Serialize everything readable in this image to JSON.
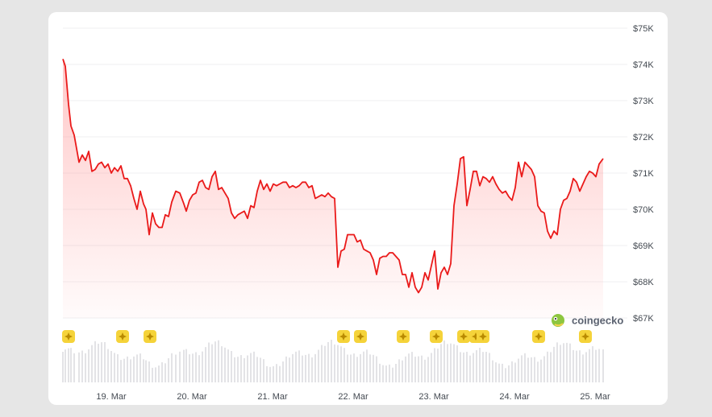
{
  "chart_data": {
    "type": "line",
    "title": "",
    "xlabel": "",
    "ylabel": "",
    "series_color": "#ea1a1a",
    "fill_color": "#ff9b9b",
    "volume_color": "#e3e3e6",
    "event_marker_color": "#f5d33a",
    "ylim": [
      67000,
      75000
    ],
    "x_range": [
      0,
      7
    ],
    "yticks": [
      {
        "value": 75000,
        "label": "$75K"
      },
      {
        "value": 74000,
        "label": "$74K"
      },
      {
        "value": 73000,
        "label": "$73K"
      },
      {
        "value": 72000,
        "label": "$72K"
      },
      {
        "value": 71000,
        "label": "$71K"
      },
      {
        "value": 70000,
        "label": "$70K"
      },
      {
        "value": 69000,
        "label": "$69K"
      },
      {
        "value": 68000,
        "label": "$68K"
      },
      {
        "value": 67000,
        "label": "$67K"
      }
    ],
    "xticks": [
      {
        "value": 0.6,
        "label": "19. Mar"
      },
      {
        "value": 1.6,
        "label": "20. Mar"
      },
      {
        "value": 2.6,
        "label": "21. Mar"
      },
      {
        "value": 3.6,
        "label": "22. Mar"
      },
      {
        "value": 4.6,
        "label": "23. Mar"
      },
      {
        "value": 5.6,
        "label": "24. Mar"
      },
      {
        "value": 6.6,
        "label": "25. Mar"
      }
    ],
    "points": [
      [
        0.0,
        74150
      ],
      [
        0.03,
        73950
      ],
      [
        0.07,
        72900
      ],
      [
        0.1,
        72300
      ],
      [
        0.14,
        72050
      ],
      [
        0.2,
        71300
      ],
      [
        0.24,
        71500
      ],
      [
        0.28,
        71350
      ],
      [
        0.32,
        71600
      ],
      [
        0.36,
        71050
      ],
      [
        0.4,
        71100
      ],
      [
        0.44,
        71250
      ],
      [
        0.48,
        71300
      ],
      [
        0.52,
        71150
      ],
      [
        0.56,
        71250
      ],
      [
        0.6,
        71000
      ],
      [
        0.64,
        71150
      ],
      [
        0.68,
        71050
      ],
      [
        0.72,
        71200
      ],
      [
        0.76,
        70850
      ],
      [
        0.8,
        70850
      ],
      [
        0.84,
        70650
      ],
      [
        0.88,
        70300
      ],
      [
        0.92,
        70000
      ],
      [
        0.96,
        70500
      ],
      [
        1.0,
        70150
      ],
      [
        1.03,
        70000
      ],
      [
        1.07,
        69300
      ],
      [
        1.11,
        69900
      ],
      [
        1.15,
        69600
      ],
      [
        1.19,
        69500
      ],
      [
        1.23,
        69500
      ],
      [
        1.27,
        69850
      ],
      [
        1.31,
        69800
      ],
      [
        1.35,
        70200
      ],
      [
        1.4,
        70500
      ],
      [
        1.45,
        70450
      ],
      [
        1.5,
        70150
      ],
      [
        1.53,
        69950
      ],
      [
        1.57,
        70250
      ],
      [
        1.61,
        70400
      ],
      [
        1.65,
        70450
      ],
      [
        1.69,
        70750
      ],
      [
        1.73,
        70800
      ],
      [
        1.77,
        70600
      ],
      [
        1.81,
        70550
      ],
      [
        1.85,
        70900
      ],
      [
        1.89,
        71050
      ],
      [
        1.93,
        70550
      ],
      [
        1.97,
        70600
      ],
      [
        2.01,
        70450
      ],
      [
        2.05,
        70300
      ],
      [
        2.09,
        69900
      ],
      [
        2.13,
        69750
      ],
      [
        2.17,
        69850
      ],
      [
        2.21,
        69900
      ],
      [
        2.25,
        69950
      ],
      [
        2.29,
        69750
      ],
      [
        2.33,
        70100
      ],
      [
        2.37,
        70050
      ],
      [
        2.41,
        70500
      ],
      [
        2.45,
        70800
      ],
      [
        2.49,
        70550
      ],
      [
        2.53,
        70700
      ],
      [
        2.57,
        70500
      ],
      [
        2.61,
        70700
      ],
      [
        2.65,
        70650
      ],
      [
        2.69,
        70700
      ],
      [
        2.73,
        70750
      ],
      [
        2.77,
        70750
      ],
      [
        2.81,
        70600
      ],
      [
        2.85,
        70650
      ],
      [
        2.89,
        70600
      ],
      [
        2.93,
        70650
      ],
      [
        2.97,
        70750
      ],
      [
        3.01,
        70750
      ],
      [
        3.05,
        70600
      ],
      [
        3.09,
        70650
      ],
      [
        3.13,
        70300
      ],
      [
        3.17,
        70350
      ],
      [
        3.21,
        70400
      ],
      [
        3.25,
        70350
      ],
      [
        3.29,
        70450
      ],
      [
        3.33,
        70350
      ],
      [
        3.37,
        70300
      ],
      [
        3.41,
        68400
      ],
      [
        3.45,
        68850
      ],
      [
        3.49,
        68900
      ],
      [
        3.53,
        69300
      ],
      [
        3.57,
        69300
      ],
      [
        3.61,
        69300
      ],
      [
        3.65,
        69100
      ],
      [
        3.69,
        69150
      ],
      [
        3.73,
        68900
      ],
      [
        3.77,
        68850
      ],
      [
        3.81,
        68800
      ],
      [
        3.85,
        68600
      ],
      [
        3.89,
        68200
      ],
      [
        3.93,
        68650
      ],
      [
        3.97,
        68700
      ],
      [
        4.01,
        68700
      ],
      [
        4.05,
        68800
      ],
      [
        4.09,
        68800
      ],
      [
        4.13,
        68700
      ],
      [
        4.17,
        68600
      ],
      [
        4.21,
        68200
      ],
      [
        4.25,
        68200
      ],
      [
        4.29,
        67850
      ],
      [
        4.33,
        68250
      ],
      [
        4.37,
        67850
      ],
      [
        4.41,
        67700
      ],
      [
        4.45,
        67850
      ],
      [
        4.49,
        68250
      ],
      [
        4.53,
        68050
      ],
      [
        4.57,
        68450
      ],
      [
        4.61,
        68850
      ],
      [
        4.65,
        67800
      ],
      [
        4.69,
        68250
      ],
      [
        4.73,
        68400
      ],
      [
        4.77,
        68200
      ],
      [
        4.81,
        68500
      ],
      [
        4.85,
        70100
      ],
      [
        4.89,
        70700
      ],
      [
        4.93,
        71400
      ],
      [
        4.97,
        71450
      ],
      [
        5.01,
        70100
      ],
      [
        5.05,
        70550
      ],
      [
        5.09,
        71050
      ],
      [
        5.13,
        71050
      ],
      [
        5.17,
        70650
      ],
      [
        5.21,
        70900
      ],
      [
        5.25,
        70850
      ],
      [
        5.29,
        70750
      ],
      [
        5.33,
        70900
      ],
      [
        5.37,
        70700
      ],
      [
        5.41,
        70550
      ],
      [
        5.45,
        70450
      ],
      [
        5.49,
        70500
      ],
      [
        5.53,
        70350
      ],
      [
        5.57,
        70250
      ],
      [
        5.61,
        70600
      ],
      [
        5.65,
        71300
      ],
      [
        5.69,
        70900
      ],
      [
        5.73,
        71300
      ],
      [
        5.77,
        71200
      ],
      [
        5.81,
        71100
      ],
      [
        5.85,
        70900
      ],
      [
        5.89,
        70100
      ],
      [
        5.93,
        69950
      ],
      [
        5.97,
        69900
      ],
      [
        6.01,
        69400
      ],
      [
        6.05,
        69200
      ],
      [
        6.09,
        69400
      ],
      [
        6.13,
        69300
      ],
      [
        6.17,
        70000
      ],
      [
        6.21,
        70250
      ],
      [
        6.25,
        70300
      ],
      [
        6.29,
        70500
      ],
      [
        6.33,
        70850
      ],
      [
        6.37,
        70750
      ],
      [
        6.41,
        70500
      ],
      [
        6.45,
        70700
      ],
      [
        6.49,
        70900
      ],
      [
        6.53,
        71050
      ],
      [
        6.57,
        71000
      ],
      [
        6.61,
        70900
      ],
      [
        6.65,
        71250
      ],
      [
        6.7,
        71400
      ]
    ],
    "event_markers_x": [
      0.07,
      0.74,
      1.08,
      3.48,
      3.69,
      4.22,
      4.63,
      4.97,
      5.12,
      5.21,
      5.9,
      6.48
    ],
    "watermark": "coingecko"
  }
}
